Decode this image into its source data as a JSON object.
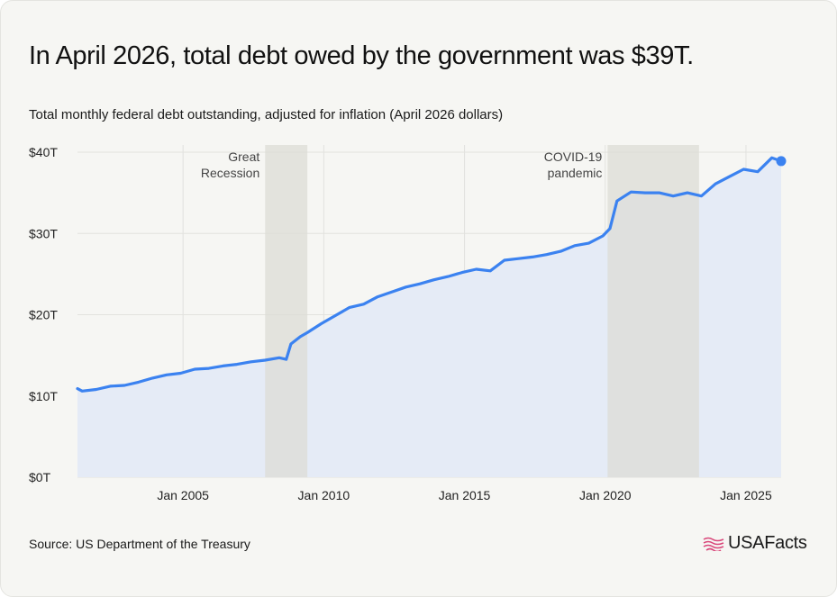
{
  "header": {
    "title": "In April 2026, total debt owed by the government was $39T.",
    "subtitle": "Total monthly federal debt outstanding, adjusted for inflation (April 2026 dollars)"
  },
  "footer": {
    "source": "Source: US Department of the Treasury",
    "brand": "USAFacts"
  },
  "colors": {
    "line": "#3b82f0",
    "area": "#e5ebf6",
    "band": "#dcdcd6",
    "grid": "#e2e2de",
    "brand_flag": "#d9477a"
  },
  "chart_data": {
    "type": "area",
    "title": "In April 2026, total debt owed by the government was $39T.",
    "subtitle": "Total monthly federal debt outstanding, adjusted for inflation (April 2026 dollars)",
    "xlabel": "",
    "ylabel": "",
    "xlim": [
      "2001-04",
      "2026-04"
    ],
    "ylim": [
      0,
      40
    ],
    "y_unit": "trillions of April 2026 dollars",
    "yticks": [
      0,
      10,
      20,
      30,
      40
    ],
    "ytick_labels": [
      "$0T",
      "$10T",
      "$20T",
      "$30T",
      "$40T"
    ],
    "xticks": [
      "2005-01",
      "2010-01",
      "2015-01",
      "2020-01",
      "2025-01"
    ],
    "xtick_labels": [
      "Jan 2005",
      "Jan 2010",
      "Jan 2015",
      "Jan 2020",
      "Jan 2025"
    ],
    "grid": true,
    "legend": "none",
    "bands": [
      {
        "label_lines": [
          "Great",
          "Recession"
        ],
        "start": "2007-12",
        "end": "2009-06"
      },
      {
        "label_lines": [
          "COVID-19",
          "pandemic"
        ],
        "start": "2020-02",
        "end": "2023-05"
      }
    ],
    "end_marker": {
      "x": "2026-04",
      "y": 38.9
    },
    "series": [
      {
        "values": [
          [
            "2001-04",
            10.9
          ],
          [
            "2001-06",
            10.6
          ],
          [
            "2001-12",
            10.8
          ],
          [
            "2002-06",
            11.2
          ],
          [
            "2002-12",
            11.3
          ],
          [
            "2003-06",
            11.7
          ],
          [
            "2003-12",
            12.2
          ],
          [
            "2004-06",
            12.6
          ],
          [
            "2004-12",
            12.8
          ],
          [
            "2005-06",
            13.3
          ],
          [
            "2005-12",
            13.4
          ],
          [
            "2006-06",
            13.7
          ],
          [
            "2006-12",
            13.9
          ],
          [
            "2007-06",
            14.2
          ],
          [
            "2007-12",
            14.4
          ],
          [
            "2008-06",
            14.7
          ],
          [
            "2008-09",
            14.5
          ],
          [
            "2008-11",
            16.4
          ],
          [
            "2009-03",
            17.3
          ],
          [
            "2009-06",
            17.8
          ],
          [
            "2009-12",
            18.9
          ],
          [
            "2010-06",
            19.9
          ],
          [
            "2010-12",
            20.9
          ],
          [
            "2011-06",
            21.3
          ],
          [
            "2011-12",
            22.2
          ],
          [
            "2012-06",
            22.8
          ],
          [
            "2012-12",
            23.4
          ],
          [
            "2013-06",
            23.8
          ],
          [
            "2013-12",
            24.3
          ],
          [
            "2014-06",
            24.7
          ],
          [
            "2014-12",
            25.2
          ],
          [
            "2015-06",
            25.6
          ],
          [
            "2015-12",
            25.4
          ],
          [
            "2016-06",
            26.7
          ],
          [
            "2016-12",
            26.9
          ],
          [
            "2017-06",
            27.1
          ],
          [
            "2017-12",
            27.4
          ],
          [
            "2018-06",
            27.8
          ],
          [
            "2018-12",
            28.5
          ],
          [
            "2019-06",
            28.8
          ],
          [
            "2019-12",
            29.7
          ],
          [
            "2020-03",
            30.6
          ],
          [
            "2020-06",
            34.0
          ],
          [
            "2020-12",
            35.1
          ],
          [
            "2021-06",
            35.0
          ],
          [
            "2021-12",
            35.0
          ],
          [
            "2022-06",
            34.6
          ],
          [
            "2022-12",
            35.0
          ],
          [
            "2023-06",
            34.6
          ],
          [
            "2023-12",
            36.1
          ],
          [
            "2024-06",
            37.0
          ],
          [
            "2024-12",
            37.9
          ],
          [
            "2025-06",
            37.6
          ],
          [
            "2025-12",
            39.3
          ],
          [
            "2026-04",
            38.9
          ]
        ]
      }
    ]
  }
}
